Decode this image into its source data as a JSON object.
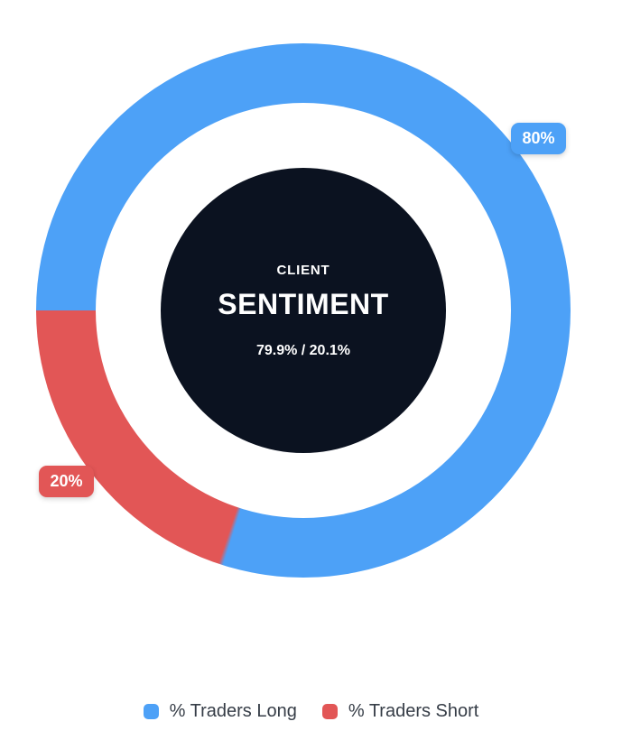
{
  "chart_data": {
    "type": "pie",
    "variant": "doughnut",
    "title": "CLIENT SENTIMENT",
    "categories": [
      "% Traders Long",
      "% Traders Short"
    ],
    "values": [
      80,
      20
    ],
    "colors": [
      "#4DA1F7",
      "#E25656"
    ],
    "data_labels": [
      "80%",
      "20%"
    ],
    "rotation_deg_clockwise_from_top": 270,
    "legend_position": "bottom",
    "center_text": [
      "CLIENT",
      "SENTIMENT",
      "79.9% / 20.1%"
    ]
  },
  "center": {
    "line1": "CLIENT",
    "line2": "SENTIMENT",
    "ratio": "79.9% / 20.1%",
    "bg_color": "#0B1220",
    "text_color": "#FFFFFF"
  },
  "badges": {
    "long": {
      "label": "80%",
      "color": "#4DA1F7"
    },
    "short": {
      "label": "20%",
      "color": "#E25656"
    }
  },
  "legend": {
    "items": [
      {
        "label": "% Traders Long",
        "color": "#4DA1F7"
      },
      {
        "label": "% Traders Short",
        "color": "#E25656"
      }
    ],
    "text_color": "#363D47"
  }
}
